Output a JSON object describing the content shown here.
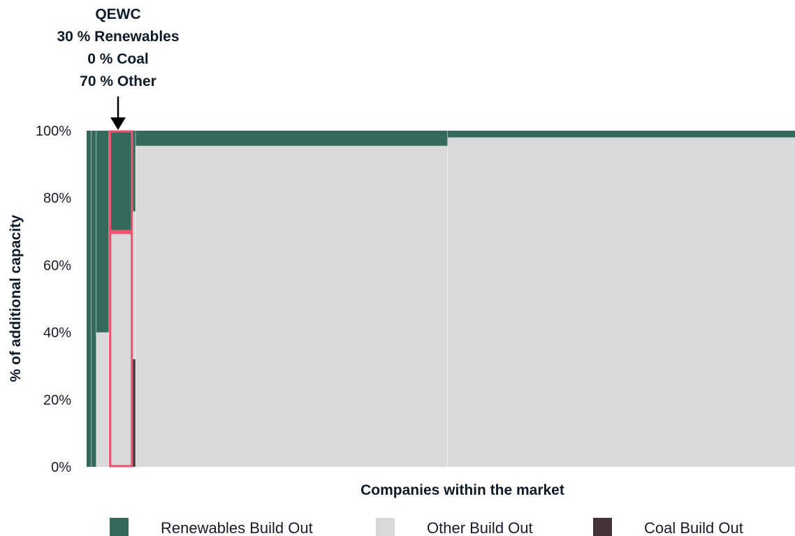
{
  "chart_data": {
    "type": "bar",
    "subtype": "marimekko-stacked-100",
    "xlabel": "Companies within the market",
    "ylabel": "% of additional capacity",
    "ylim": [
      0,
      100
    ],
    "y_ticks": [
      "0%",
      "20%",
      "40%",
      "60%",
      "80%",
      "100%"
    ],
    "y_tick_values": [
      0,
      20,
      40,
      60,
      80,
      100
    ],
    "legend_position": "bottom",
    "series": [
      {
        "name": "Renewables Build Out",
        "color": "#346a5b"
      },
      {
        "name": "Other Build Out",
        "color": "#d9d9d9"
      },
      {
        "name": "Coal Build Out",
        "color": "#45333a"
      }
    ],
    "companies": [
      {
        "name": "",
        "width_share": 0.7,
        "renewables": 100,
        "other": 0,
        "coal": 0
      },
      {
        "name": "",
        "width_share": 0.7,
        "renewables": 100,
        "other": 0,
        "coal": 0
      },
      {
        "name": "",
        "width_share": 1.8,
        "renewables": 60,
        "other": 40,
        "coal": 0
      },
      {
        "name": "QEWC",
        "width_share": 3.4,
        "renewables": 30,
        "other": 70,
        "coal": 0,
        "highlight": true
      },
      {
        "name": "",
        "width_share": 0.4,
        "renewables": 24,
        "other": 44,
        "coal": 32
      },
      {
        "name": "",
        "width_share": 44.5,
        "renewables": 4.5,
        "other": 95.5,
        "coal": 0
      },
      {
        "name": "",
        "width_share": 49.5,
        "renewables": 2,
        "other": 98,
        "coal": 0
      }
    ],
    "highlight_color": "#f0506e",
    "annotation": {
      "company": "QEWC",
      "lines": [
        "QEWC",
        "30 % Renewables",
        "0 % Coal",
        "70 % Other"
      ]
    }
  }
}
